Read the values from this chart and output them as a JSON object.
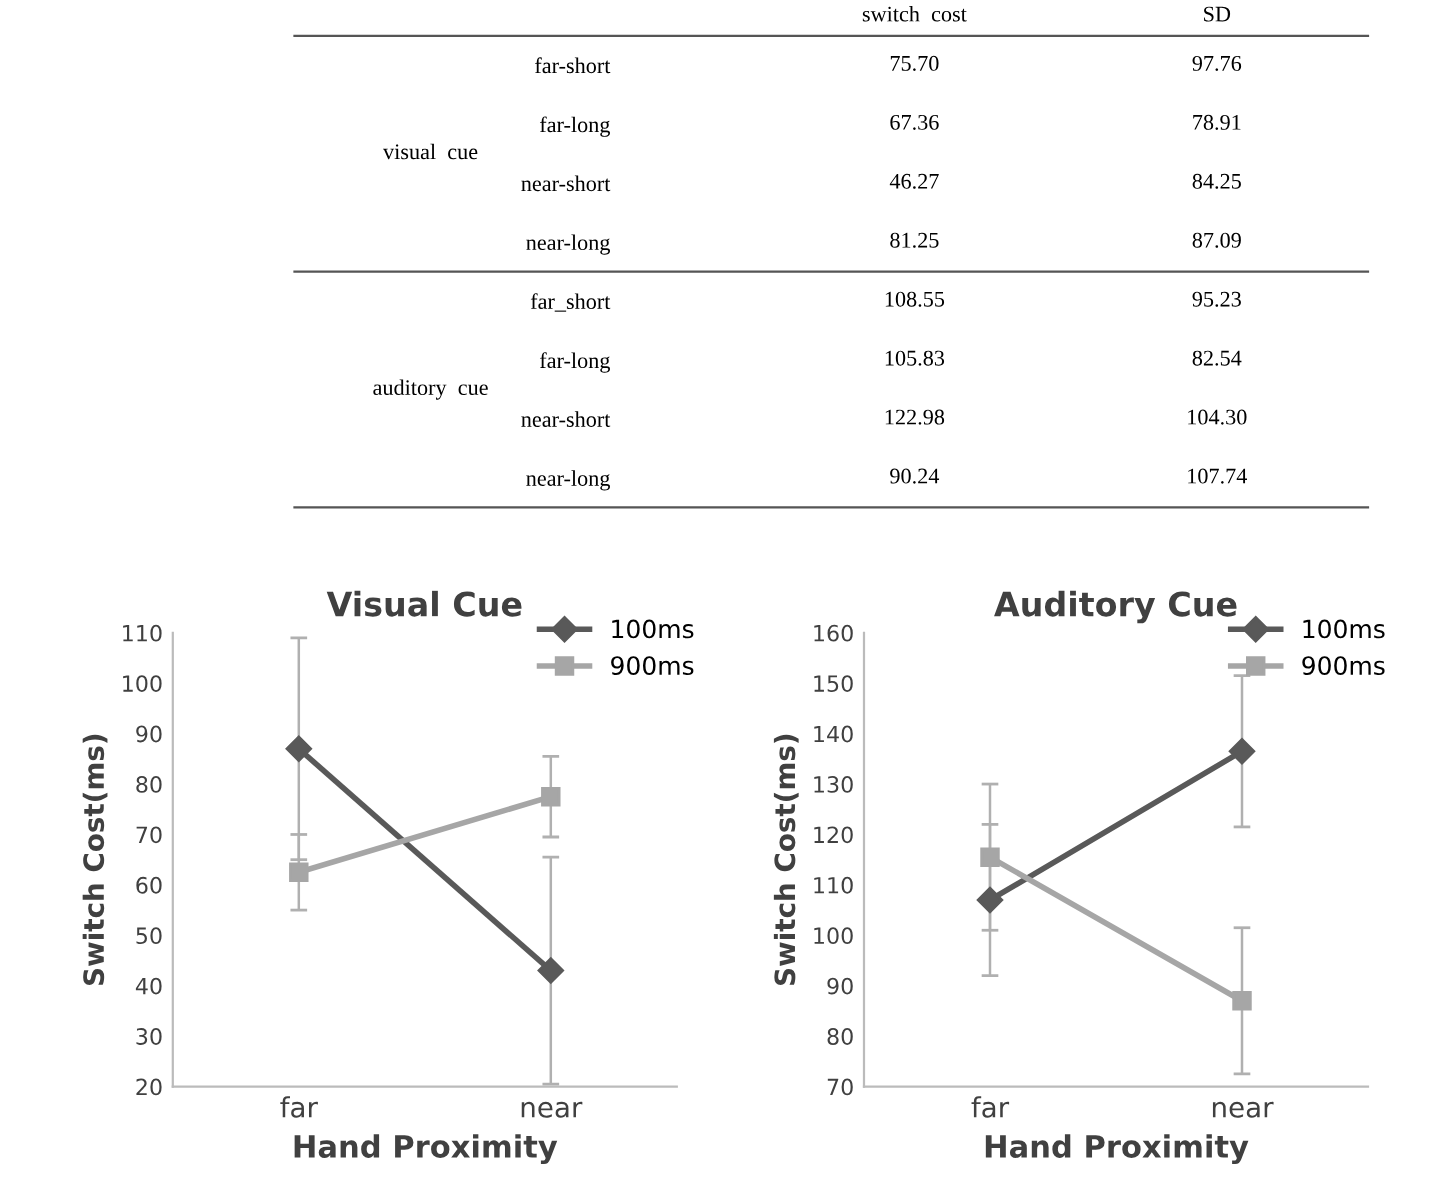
{
  "chart_data": [
    {
      "type": "heatmap",
      "categories": [
        "switch  cost",
        "SD"
      ],
      "y_categories": [
        "far-short",
        "far-long",
        "near-short",
        "near-long",
        "far_short",
        "far-long",
        "near-short",
        "near-long"
      ],
      "annotations": [
        "visual  cue",
        "auditory  cue"
      ],
      "cells": [
        [
          75.7,
          97.76
        ],
        [
          67.36,
          78.91
        ],
        [
          46.27,
          84.25
        ],
        [
          81.25,
          87.09
        ],
        [
          108.55,
          95.23
        ],
        [
          105.83,
          82.54
        ],
        [
          122.98,
          104.3
        ],
        [
          90.24,
          107.74
        ]
      ],
      "cell_labels": [
        [
          "75.70",
          "97.76"
        ],
        [
          "67.36",
          "78.91"
        ],
        [
          "46.27",
          "84.25"
        ],
        [
          "81.25",
          "87.09"
        ],
        [
          "108.55",
          "95.23"
        ],
        [
          "105.83",
          "82.54"
        ],
        [
          "122.98",
          "104.30"
        ],
        [
          "90.24",
          "107.74"
        ]
      ]
    },
    {
      "type": "line",
      "title": "Visual Cue",
      "xlabel": "Hand Proximity",
      "ylabel": "Switch Cost(ms)",
      "categories": [
        "far",
        "near"
      ],
      "series": [
        {
          "name": "100ms",
          "color": "#595959",
          "marker": "diamond",
          "values": [
            87,
            43
          ],
          "errors": [
            22,
            22.5
          ]
        },
        {
          "name": "900ms",
          "color": "#a6a6a6",
          "marker": "square",
          "values": [
            62.5,
            77.5
          ],
          "errors": [
            7.5,
            8
          ]
        }
      ],
      "ylim": [
        20,
        110
      ],
      "yticks": [
        20,
        30,
        40,
        50,
        60,
        70,
        80,
        90,
        100,
        110
      ],
      "legend": "top right",
      "grid": false
    },
    {
      "type": "line",
      "title": "Auditory Cue",
      "xlabel": "Hand Proximity",
      "ylabel": "Switch Cost(ms)",
      "categories": [
        "far",
        "near"
      ],
      "series": [
        {
          "name": "100ms",
          "color": "#595959",
          "marker": "diamond",
          "values": [
            107,
            136.5
          ],
          "errors": [
            15,
            15
          ]
        },
        {
          "name": "900ms",
          "color": "#a6a6a6",
          "marker": "square",
          "values": [
            115.5,
            87
          ],
          "errors": [
            14.5,
            14.5
          ]
        }
      ],
      "ylim": [
        70,
        160
      ],
      "yticks": [
        70,
        80,
        90,
        100,
        110,
        120,
        130,
        140,
        150,
        160
      ],
      "legend": "top right",
      "grid": false
    }
  ]
}
